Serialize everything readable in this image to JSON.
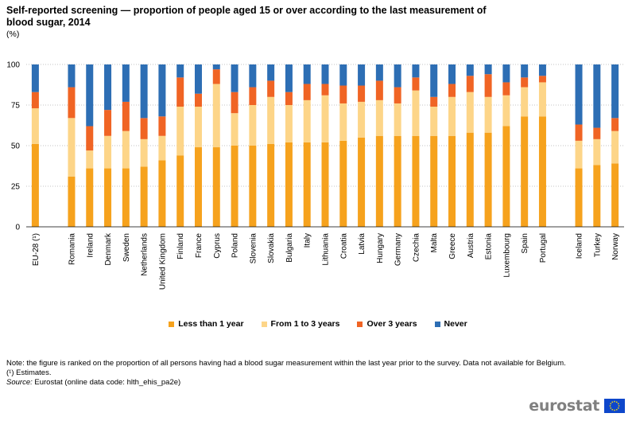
{
  "title": "Self-reported screening — proportion of people aged 15 or over according to the last measurement of blood sugar, 2014",
  "unit": "(%)",
  "chart_data": {
    "type": "bar",
    "stacked": true,
    "ylim": [
      0,
      100
    ],
    "yticks": [
      0,
      25,
      50,
      75,
      100
    ],
    "grid": true,
    "legend_position": "bottom",
    "categories": [
      "EU-28 (¹)",
      "",
      "Romania",
      "Ireland",
      "Denmark",
      "Sweden",
      "Netherlands",
      "United Kingdom",
      "Finland",
      "France",
      "Cyprus",
      "Poland",
      "Slovenia",
      "Slovakia",
      "Bulgaria",
      "Italy",
      "Lithuania",
      "Croatia",
      "Latvia",
      "Hungary",
      "Germany",
      "Czechia",
      "Malta",
      "Greece",
      "Austria",
      "Estonia",
      "Luxembourg",
      "Spain",
      "Portugal",
      "",
      "Iceland",
      "Turkey",
      "Norway"
    ],
    "series": [
      {
        "name": "Less than 1 year",
        "color": "#f6a21d",
        "values": [
          51,
          null,
          31,
          36,
          36,
          36,
          37,
          41,
          44,
          49,
          49,
          50,
          50,
          51,
          52,
          52,
          52,
          53,
          55,
          56,
          56,
          56,
          56,
          56,
          58,
          58,
          62,
          68,
          68,
          null,
          36,
          38,
          39
        ]
      },
      {
        "name": "From 1 to 3 years",
        "color": "#fdd588",
        "values": [
          22,
          null,
          36,
          11,
          20,
          23,
          17,
          15,
          30,
          25,
          39,
          20,
          25,
          29,
          23,
          26,
          29,
          23,
          22,
          22,
          20,
          28,
          18,
          24,
          25,
          22,
          19,
          18,
          21,
          null,
          17,
          16,
          20
        ]
      },
      {
        "name": "Over 3 years",
        "color": "#f06424",
        "values": [
          10,
          null,
          19,
          15,
          16,
          18,
          13,
          12,
          18,
          8,
          9,
          13,
          11,
          10,
          8,
          10,
          7,
          11,
          10,
          12,
          10,
          8,
          6,
          8,
          10,
          14,
          8,
          6,
          4,
          null,
          10,
          7,
          8
        ]
      },
      {
        "name": "Never",
        "color": "#2d6eb4",
        "values": [
          17,
          null,
          14,
          38,
          28,
          23,
          33,
          32,
          8,
          18,
          3,
          17,
          14,
          10,
          17,
          12,
          12,
          13,
          13,
          10,
          14,
          8,
          20,
          12,
          7,
          6,
          11,
          8,
          7,
          null,
          37,
          39,
          33
        ]
      }
    ]
  },
  "notes": {
    "note": "Note: the figure is ranked on the proportion of all persons having had a blood sugar measurement within the last year prior to the survey. Data not available for Belgium.",
    "estimates": "(¹) Estimates.",
    "source_label": "Source:",
    "source_text": " Eurostat (online data code: hlth_ehis_pa2e)"
  },
  "logo": {
    "text": "eurostat",
    "flag_color": "#0e47cb",
    "star_color": "#ffdd00"
  }
}
